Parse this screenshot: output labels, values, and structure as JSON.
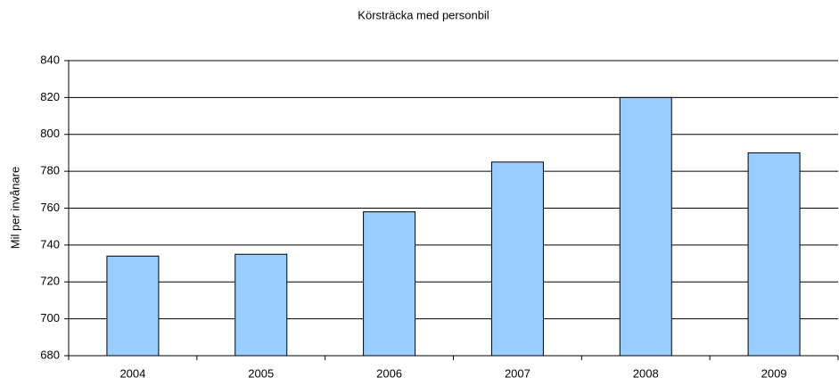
{
  "chart_data": {
    "type": "bar",
    "title": "Körsträcka med personbil",
    "y_label": "Mil per invånare",
    "categories": [
      "2004",
      "2005",
      "2006",
      "2007",
      "2008",
      "2009"
    ],
    "values": [
      734,
      735,
      758,
      785,
      820,
      790
    ],
    "color": "#99ccff",
    "ylim": [
      680,
      840
    ],
    "yticks": [
      680,
      700,
      720,
      740,
      760,
      780,
      800,
      820,
      840
    ],
    "grid": true
  }
}
